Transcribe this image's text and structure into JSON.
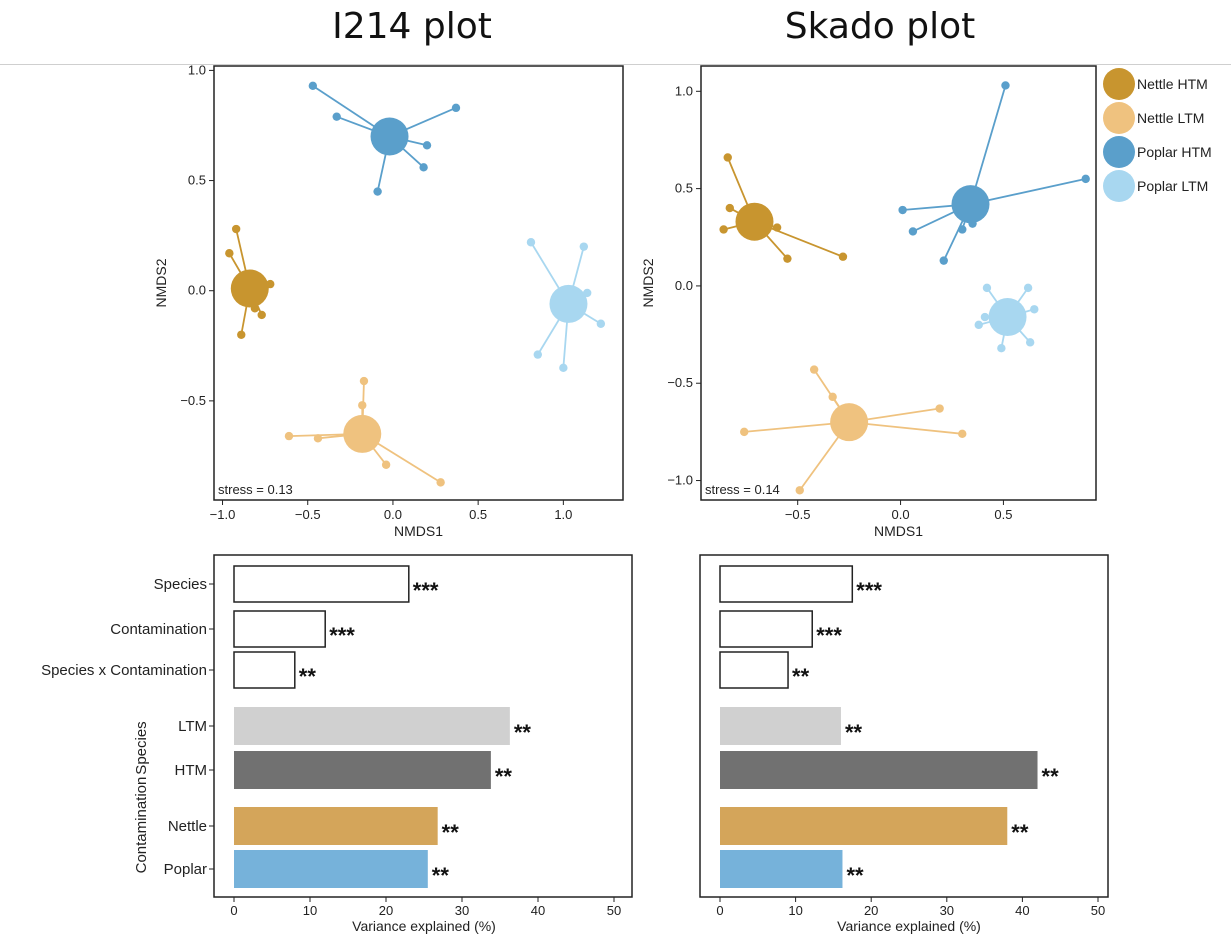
{
  "titles": {
    "left": "I214 plot",
    "right": "Skado plot"
  },
  "colors": {
    "nettle_htm": "#C8952F",
    "nettle_ltm": "#EFC27F",
    "poplar_htm": "#5A9FCB",
    "poplar_ltm": "#A8D7F0",
    "bar_ltm": "#D0D0D0",
    "bar_htm": "#717171",
    "bar_nettle": "#D4A55A",
    "bar_poplar": "#76B2DA"
  },
  "legend": [
    {
      "label": "Nettle HTM",
      "color": "#C8952F"
    },
    {
      "label": "Nettle LTM",
      "color": "#EFC27F"
    },
    {
      "label": "Poplar HTM",
      "color": "#5A9FCB"
    },
    {
      "label": "Poplar LTM",
      "color": "#A8D7F0"
    }
  ],
  "chart_data": [
    {
      "type": "scatter",
      "panel": "I214",
      "xlabel": "NMDS1",
      "ylabel": "NMDS2",
      "xlim": [
        -1.05,
        1.35
      ],
      "ylim": [
        -0.95,
        1.02
      ],
      "xticks": [
        -1.0,
        -0.5,
        0.0,
        0.5,
        1.0
      ],
      "xtick_labels": [
        "−1.0",
        "−0.5",
        "0.0",
        "0.5",
        "1.0"
      ],
      "yticks": [
        1.0,
        0.5,
        0.0,
        -0.5
      ],
      "ytick_labels": [
        "1.0",
        "0.5",
        "0.0",
        "−0.5"
      ],
      "annotation": "stress = 0.13",
      "groups": [
        {
          "name": "Nettle HTM",
          "centroid": [
            -0.84,
            0.01
          ],
          "points": [
            [
              -0.92,
              0.28
            ],
            [
              -0.96,
              0.17
            ],
            [
              -0.72,
              0.03
            ],
            [
              -0.77,
              -0.11
            ],
            [
              -0.81,
              -0.08
            ],
            [
              -0.89,
              -0.2
            ]
          ]
        },
        {
          "name": "Nettle LTM",
          "centroid": [
            -0.18,
            -0.65
          ],
          "points": [
            [
              -0.61,
              -0.66
            ],
            [
              -0.44,
              -0.67
            ],
            [
              -0.17,
              -0.41
            ],
            [
              -0.18,
              -0.52
            ],
            [
              -0.04,
              -0.79
            ],
            [
              0.28,
              -0.87
            ]
          ]
        },
        {
          "name": "Poplar HTM",
          "centroid": [
            -0.02,
            0.7
          ],
          "points": [
            [
              -0.47,
              0.93
            ],
            [
              -0.33,
              0.79
            ],
            [
              0.37,
              0.83
            ],
            [
              0.2,
              0.66
            ],
            [
              0.18,
              0.56
            ],
            [
              -0.09,
              0.45
            ]
          ]
        },
        {
          "name": "Poplar LTM",
          "centroid": [
            1.03,
            -0.06
          ],
          "points": [
            [
              0.81,
              0.22
            ],
            [
              1.12,
              0.2
            ],
            [
              1.14,
              -0.01
            ],
            [
              1.22,
              -0.15
            ],
            [
              1.0,
              -0.35
            ],
            [
              0.85,
              -0.29
            ]
          ]
        }
      ]
    },
    {
      "type": "scatter",
      "panel": "Skado",
      "xlabel": "NMDS1",
      "ylabel": "NMDS2",
      "xlim": [
        -0.97,
        0.95
      ],
      "ylim": [
        -1.1,
        1.13
      ],
      "xticks": [
        -0.5,
        0.0,
        0.5
      ],
      "xtick_labels": [
        "−0.5",
        "0.0",
        "0.5"
      ],
      "yticks": [
        1.0,
        0.5,
        0.0,
        -0.5,
        -1.0
      ],
      "ytick_labels": [
        "1.0",
        "0.5",
        "0.0",
        "−0.5",
        "−1.0"
      ],
      "annotation": "stress = 0.14",
      "groups": [
        {
          "name": "Nettle HTM",
          "centroid": [
            -0.71,
            0.33
          ],
          "points": [
            [
              -0.84,
              0.66
            ],
            [
              -0.83,
              0.4
            ],
            [
              -0.86,
              0.29
            ],
            [
              -0.6,
              0.3
            ],
            [
              -0.55,
              0.14
            ],
            [
              -0.28,
              0.15
            ]
          ]
        },
        {
          "name": "Nettle LTM",
          "centroid": [
            -0.25,
            -0.7
          ],
          "points": [
            [
              -0.42,
              -0.43
            ],
            [
              -0.33,
              -0.57
            ],
            [
              0.19,
              -0.63
            ],
            [
              0.3,
              -0.76
            ],
            [
              -0.76,
              -0.75
            ],
            [
              -0.49,
              -1.05
            ]
          ]
        },
        {
          "name": "Poplar HTM",
          "centroid": [
            0.34,
            0.42
          ],
          "points": [
            [
              0.51,
              1.03
            ],
            [
              0.9,
              0.55
            ],
            [
              0.01,
              0.39
            ],
            [
              0.06,
              0.28
            ],
            [
              0.21,
              0.13
            ],
            [
              0.35,
              0.32
            ],
            [
              0.3,
              0.29
            ]
          ]
        },
        {
          "name": "Poplar LTM",
          "centroid": [
            0.52,
            -0.16
          ],
          "points": [
            [
              0.42,
              -0.01
            ],
            [
              0.62,
              -0.01
            ],
            [
              0.65,
              -0.12
            ],
            [
              0.38,
              -0.2
            ],
            [
              0.41,
              -0.16
            ],
            [
              0.63,
              -0.29
            ],
            [
              0.49,
              -0.32
            ]
          ]
        }
      ]
    },
    {
      "type": "bar",
      "orientation": "horizontal",
      "panel": "I214",
      "xlabel": "Variance explained (%)",
      "ylabel_groups": [
        "Contamination",
        "Species"
      ],
      "xlim": [
        0,
        50
      ],
      "xticks": [
        0,
        10,
        20,
        30,
        40,
        50
      ],
      "categories": [
        "Species",
        "Contamination",
        "Species x Contamination",
        "LTM",
        "HTM",
        "Nettle",
        "Poplar"
      ],
      "values": [
        23,
        12,
        8,
        36.3,
        33.8,
        26.8,
        25.5
      ],
      "significance": [
        "***",
        "***",
        "**",
        "**",
        "**",
        "**",
        "**"
      ]
    },
    {
      "type": "bar",
      "orientation": "horizontal",
      "panel": "Skado",
      "xlabel": "Variance explained (%)",
      "xlim": [
        0,
        50
      ],
      "xticks": [
        0,
        10,
        20,
        30,
        40,
        50
      ],
      "categories": [
        "Species",
        "Contamination",
        "Species x Contamination",
        "LTM",
        "HTM",
        "Nettle",
        "Poplar"
      ],
      "values": [
        17.5,
        12.2,
        9,
        16,
        42,
        38,
        16.2
      ],
      "significance": [
        "***",
        "***",
        "**",
        "**",
        "**",
        "**",
        "**"
      ]
    }
  ]
}
